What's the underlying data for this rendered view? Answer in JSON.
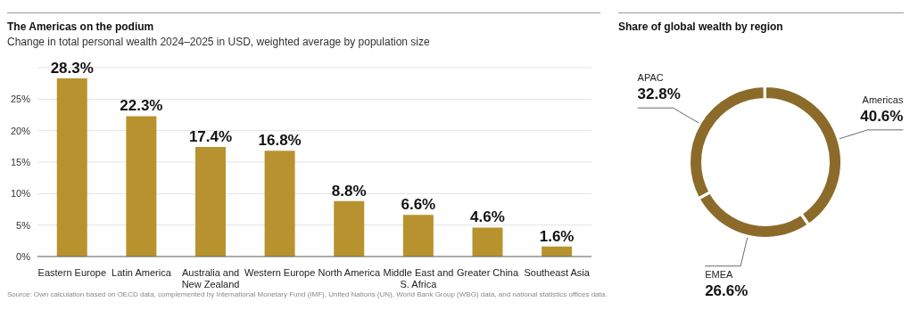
{
  "chart_data": [
    {
      "type": "bar",
      "title": "The Americas on the podium",
      "subtitle": "Change in total personal wealth 2024–2025 in USD, weighted average by population size",
      "categories": [
        "Eastern Europe",
        "Latin America",
        "Australia and New Zealand",
        "Western Europe",
        "North America",
        "Middle East and S. Africa",
        "Greater China",
        "Southeast Asia"
      ],
      "values": [
        28.3,
        22.3,
        17.4,
        16.8,
        8.8,
        6.6,
        4.6,
        1.6
      ],
      "value_labels": [
        "28.3%",
        "22.3%",
        "17.4%",
        "16.8%",
        "8.8%",
        "6.6%",
        "4.6%",
        "1.6%"
      ],
      "color": "#b8922e",
      "ylim": [
        0,
        30
      ],
      "yticks": [
        {
          "value": 0,
          "label": "0%"
        },
        {
          "value": 5,
          "label": "5%"
        },
        {
          "value": 10,
          "label": "10%"
        },
        {
          "value": 15,
          "label": "15%"
        },
        {
          "value": 20,
          "label": "20%"
        },
        {
          "value": 25,
          "label": "25%"
        }
      ],
      "grid": "y",
      "annotations": [
        "Source: Own calculation based on OECD data, complemented by International Monetary Fund (IMF), United Nations (UN), World Bank Group (WBG) data, and national statistics offices data."
      ]
    },
    {
      "type": "donut",
      "title": "Share of global wealth by region",
      "categories": [
        "Americas",
        "EMEA",
        "APAC"
      ],
      "values": [
        40.6,
        26.6,
        32.8
      ],
      "value_labels": [
        "40.6%",
        "26.6%",
        "32.8%"
      ],
      "colors": [
        "#8c6b2a",
        "#8c6b2a",
        "#8c6b2a"
      ]
    }
  ]
}
